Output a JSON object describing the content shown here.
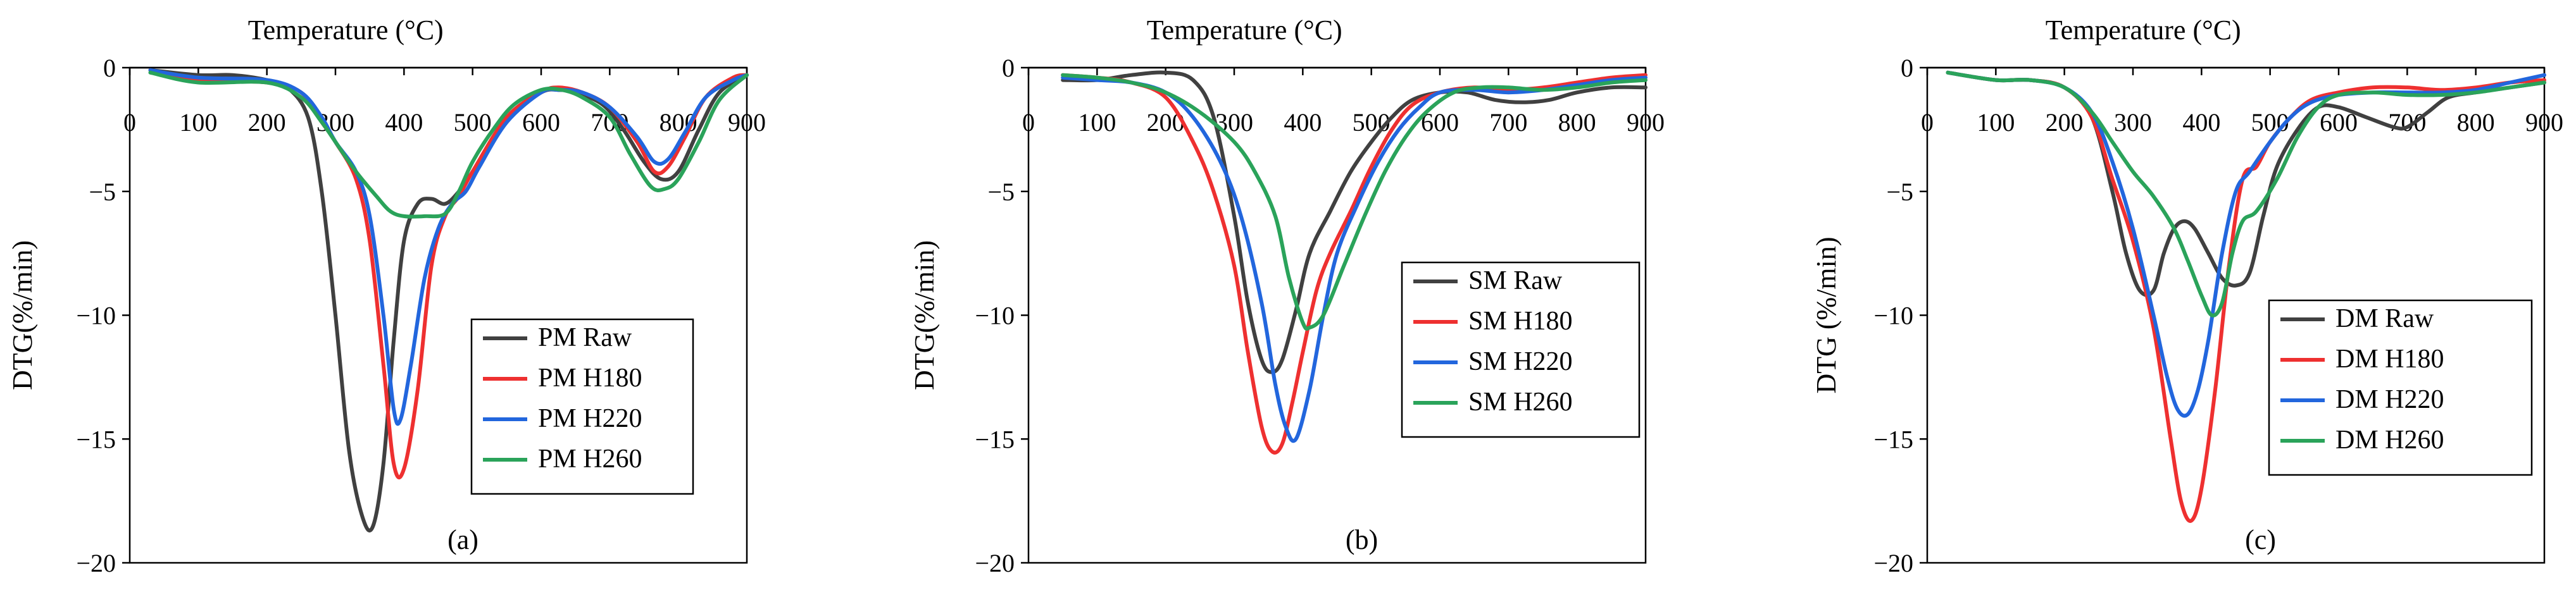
{
  "chart_data": [
    {
      "type": "line",
      "panel_label": "(a)",
      "xlabel": "Temperature (°C)",
      "ylabel": "DTG(%/min)",
      "x_ticks": [
        "0",
        "100",
        "200",
        "300",
        "400",
        "500",
        "600",
        "700",
        "800",
        "900"
      ],
      "y_ticks": [
        "0",
        "−5",
        "−10",
        "−15",
        "−20"
      ],
      "xlim": [
        0,
        900
      ],
      "ylim": [
        -20,
        0
      ],
      "legend": "lower-right",
      "series": [
        {
          "name": "PM Raw",
          "color": "#404040",
          "x": [
            30,
            100,
            150,
            200,
            230,
            260,
            280,
            300,
            320,
            340,
            355,
            370,
            385,
            400,
            420,
            440,
            460,
            480,
            500,
            550,
            600,
            625,
            650,
            690,
            720,
            750,
            775,
            800,
            830,
            860,
            900
          ],
          "y": [
            -0.1,
            -0.3,
            -0.3,
            -0.5,
            -0.8,
            -2.0,
            -5.0,
            -10.0,
            -15.5,
            -18.2,
            -18.5,
            -16.0,
            -11.0,
            -7.0,
            -5.5,
            -5.3,
            -5.5,
            -5.0,
            -4.2,
            -2.0,
            -1.0,
            -0.9,
            -1.0,
            -1.5,
            -2.5,
            -3.8,
            -4.5,
            -4.2,
            -2.5,
            -1.0,
            -0.3
          ]
        },
        {
          "name": "PM H180",
          "color": "#ee3030",
          "x": [
            30,
            100,
            200,
            250,
            280,
            300,
            330,
            350,
            370,
            385,
            400,
            420,
            440,
            460,
            480,
            500,
            550,
            600,
            625,
            660,
            700,
            740,
            765,
            785,
            810,
            840,
            880,
            900
          ],
          "y": [
            -0.1,
            -0.5,
            -0.6,
            -1.0,
            -2.2,
            -3.0,
            -4.5,
            -7.0,
            -12.0,
            -16.0,
            -16.2,
            -13.0,
            -8.0,
            -6.0,
            -5.2,
            -4.2,
            -2.0,
            -1.0,
            -0.8,
            -1.0,
            -1.6,
            -3.0,
            -4.2,
            -4.0,
            -2.8,
            -1.2,
            -0.4,
            -0.3
          ]
        },
        {
          "name": "PM H220",
          "color": "#2266dd",
          "x": [
            30,
            100,
            200,
            250,
            280,
            300,
            330,
            350,
            370,
            385,
            395,
            410,
            430,
            450,
            470,
            490,
            510,
            550,
            600,
            625,
            660,
            700,
            740,
            765,
            785,
            810,
            840,
            880,
            900
          ],
          "y": [
            -0.1,
            -0.4,
            -0.5,
            -1.0,
            -2.0,
            -3.0,
            -4.2,
            -6.0,
            -10.0,
            -13.8,
            -14.2,
            -12.0,
            -8.5,
            -6.5,
            -5.5,
            -5.0,
            -4.0,
            -2.2,
            -1.0,
            -0.9,
            -1.0,
            -1.6,
            -2.8,
            -3.8,
            -3.7,
            -2.6,
            -1.2,
            -0.5,
            -0.3
          ]
        },
        {
          "name": "PM H260",
          "color": "#2aa35a",
          "x": [
            30,
            100,
            200,
            250,
            280,
            300,
            330,
            360,
            380,
            400,
            430,
            460,
            480,
            500,
            530,
            560,
            600,
            630,
            660,
            700,
            730,
            760,
            780,
            800,
            830,
            860,
            900
          ],
          "y": [
            -0.2,
            -0.6,
            -0.6,
            -1.2,
            -2.2,
            -3.0,
            -4.2,
            -5.2,
            -5.8,
            -6.0,
            -6.0,
            -5.9,
            -5.0,
            -3.8,
            -2.5,
            -1.5,
            -0.9,
            -0.9,
            -1.2,
            -2.0,
            -3.5,
            -4.8,
            -4.9,
            -4.5,
            -3.0,
            -1.3,
            -0.3
          ]
        }
      ]
    },
    {
      "type": "line",
      "panel_label": "(b)",
      "xlabel": "Temperature (°C)",
      "ylabel": "DTG(%/min)",
      "x_ticks": [
        "0",
        "100",
        "200",
        "300",
        "400",
        "500",
        "600",
        "700",
        "800",
        "900"
      ],
      "y_ticks": [
        "0",
        "−5",
        "−10",
        "−15",
        "−20"
      ],
      "xlim": [
        0,
        900
      ],
      "ylim": [
        -20,
        0
      ],
      "legend": "right",
      "series": [
        {
          "name": "SM Raw",
          "color": "#404040",
          "x": [
            50,
            100,
            150,
            200,
            240,
            270,
            300,
            320,
            340,
            355,
            370,
            390,
            410,
            440,
            470,
            500,
            530,
            560,
            600,
            640,
            680,
            720,
            760,
            800,
            850,
            900
          ],
          "y": [
            -0.5,
            -0.5,
            -0.3,
            -0.2,
            -0.5,
            -2.0,
            -6.0,
            -9.5,
            -11.8,
            -12.3,
            -11.8,
            -9.8,
            -7.5,
            -5.8,
            -4.2,
            -3.0,
            -2.0,
            -1.3,
            -1.0,
            -1.0,
            -1.3,
            -1.4,
            -1.3,
            -1.0,
            -0.8,
            -0.8
          ]
        },
        {
          "name": "SM H180",
          "color": "#ee3030",
          "x": [
            50,
            100,
            150,
            200,
            240,
            270,
            300,
            320,
            340,
            355,
            370,
            385,
            400,
            420,
            440,
            470,
            500,
            530,
            560,
            600,
            650,
            700,
            750,
            800,
            850,
            900
          ],
          "y": [
            -0.3,
            -0.4,
            -0.6,
            -1.2,
            -3.0,
            -5.0,
            -8.0,
            -11.5,
            -14.5,
            -15.5,
            -15.2,
            -13.5,
            -11.5,
            -9.0,
            -7.5,
            -5.8,
            -4.0,
            -2.5,
            -1.5,
            -1.0,
            -0.8,
            -0.9,
            -0.8,
            -0.6,
            -0.4,
            -0.3
          ]
        },
        {
          "name": "SM H220",
          "color": "#2266dd",
          "x": [
            50,
            100,
            150,
            200,
            240,
            280,
            310,
            340,
            360,
            375,
            390,
            410,
            430,
            450,
            480,
            510,
            540,
            570,
            600,
            650,
            700,
            750,
            800,
            850,
            900
          ],
          "y": [
            -0.4,
            -0.5,
            -0.6,
            -1.0,
            -2.0,
            -3.8,
            -6.0,
            -9.5,
            -12.8,
            -14.5,
            -15.0,
            -13.0,
            -10.0,
            -7.5,
            -5.5,
            -3.8,
            -2.5,
            -1.6,
            -1.0,
            -0.9,
            -1.0,
            -0.9,
            -0.7,
            -0.5,
            -0.4
          ]
        },
        {
          "name": "SM H260",
          "color": "#2aa35a",
          "x": [
            50,
            100,
            150,
            200,
            250,
            300,
            330,
            360,
            380,
            400,
            410,
            430,
            460,
            490,
            520,
            550,
            580,
            620,
            660,
            700,
            750,
            800,
            850,
            900
          ],
          "y": [
            -0.3,
            -0.4,
            -0.6,
            -1.0,
            -1.8,
            -3.0,
            -4.2,
            -6.0,
            -8.5,
            -10.3,
            -10.5,
            -10.0,
            -8.0,
            -6.0,
            -4.2,
            -2.8,
            -1.8,
            -1.0,
            -0.8,
            -0.8,
            -0.9,
            -0.8,
            -0.6,
            -0.5
          ]
        }
      ]
    },
    {
      "type": "line",
      "panel_label": "(c)",
      "xlabel": "Temperature (°C)",
      "ylabel": "DTG (%/min)",
      "x_ticks": [
        "0",
        "100",
        "200",
        "300",
        "400",
        "500",
        "600",
        "700",
        "800",
        "900"
      ],
      "y_ticks": [
        "0",
        "−5",
        "−10",
        "−15",
        "−20"
      ],
      "xlim": [
        0,
        900
      ],
      "ylim": [
        -20,
        0
      ],
      "legend": "lower-right",
      "series": [
        {
          "name": "DM Raw",
          "color": "#404040",
          "x": [
            30,
            100,
            150,
            200,
            240,
            270,
            290,
            310,
            330,
            345,
            360,
            375,
            390,
            410,
            430,
            450,
            470,
            490,
            510,
            540,
            570,
            600,
            640,
            680,
            700,
            730,
            760,
            800,
            850,
            900
          ],
          "y": [
            -0.2,
            -0.5,
            -0.5,
            -0.8,
            -2.0,
            -5.0,
            -7.5,
            -9.0,
            -9.0,
            -7.5,
            -6.5,
            -6.2,
            -6.5,
            -7.5,
            -8.5,
            -8.8,
            -8.3,
            -6.0,
            -4.0,
            -2.5,
            -1.6,
            -1.6,
            -2.0,
            -2.4,
            -2.4,
            -1.8,
            -1.2,
            -1.0,
            -0.8,
            -0.6
          ]
        },
        {
          "name": "DM H180",
          "color": "#ee3030",
          "x": [
            30,
            100,
            150,
            200,
            240,
            270,
            300,
            330,
            355,
            370,
            385,
            400,
            420,
            440,
            460,
            480,
            500,
            530,
            560,
            600,
            650,
            700,
            750,
            800,
            850,
            900
          ],
          "y": [
            -0.2,
            -0.5,
            -0.5,
            -0.8,
            -2.0,
            -4.5,
            -7.0,
            -10.5,
            -15.0,
            -17.5,
            -18.3,
            -17.0,
            -13.0,
            -8.0,
            -4.5,
            -4.0,
            -3.0,
            -2.0,
            -1.3,
            -1.0,
            -0.8,
            -0.8,
            -0.9,
            -0.8,
            -0.6,
            -0.5
          ]
        },
        {
          "name": "DM H220",
          "color": "#2266dd",
          "x": [
            30,
            100,
            150,
            200,
            240,
            270,
            300,
            330,
            350,
            365,
            380,
            395,
            410,
            430,
            450,
            470,
            500,
            530,
            560,
            600,
            650,
            700,
            750,
            800,
            850,
            900
          ],
          "y": [
            -0.2,
            -0.5,
            -0.5,
            -0.8,
            -1.8,
            -3.8,
            -6.5,
            -10.0,
            -12.5,
            -13.8,
            -14.0,
            -13.0,
            -11.0,
            -7.5,
            -5.0,
            -4.2,
            -3.0,
            -2.0,
            -1.4,
            -1.1,
            -1.0,
            -1.0,
            -1.0,
            -0.9,
            -0.6,
            -0.3
          ]
        },
        {
          "name": "DM H260",
          "color": "#2aa35a",
          "x": [
            30,
            100,
            150,
            200,
            240,
            270,
            300,
            330,
            360,
            380,
            400,
            415,
            430,
            445,
            460,
            480,
            510,
            540,
            570,
            600,
            650,
            700,
            750,
            800,
            850,
            900
          ],
          "y": [
            -0.2,
            -0.5,
            -0.5,
            -0.8,
            -1.8,
            -3.0,
            -4.2,
            -5.2,
            -6.5,
            -7.8,
            -9.2,
            -10.0,
            -9.5,
            -7.5,
            -6.2,
            -5.8,
            -4.5,
            -2.8,
            -1.6,
            -1.1,
            -1.0,
            -1.1,
            -1.1,
            -1.0,
            -0.8,
            -0.6
          ]
        }
      ]
    }
  ]
}
